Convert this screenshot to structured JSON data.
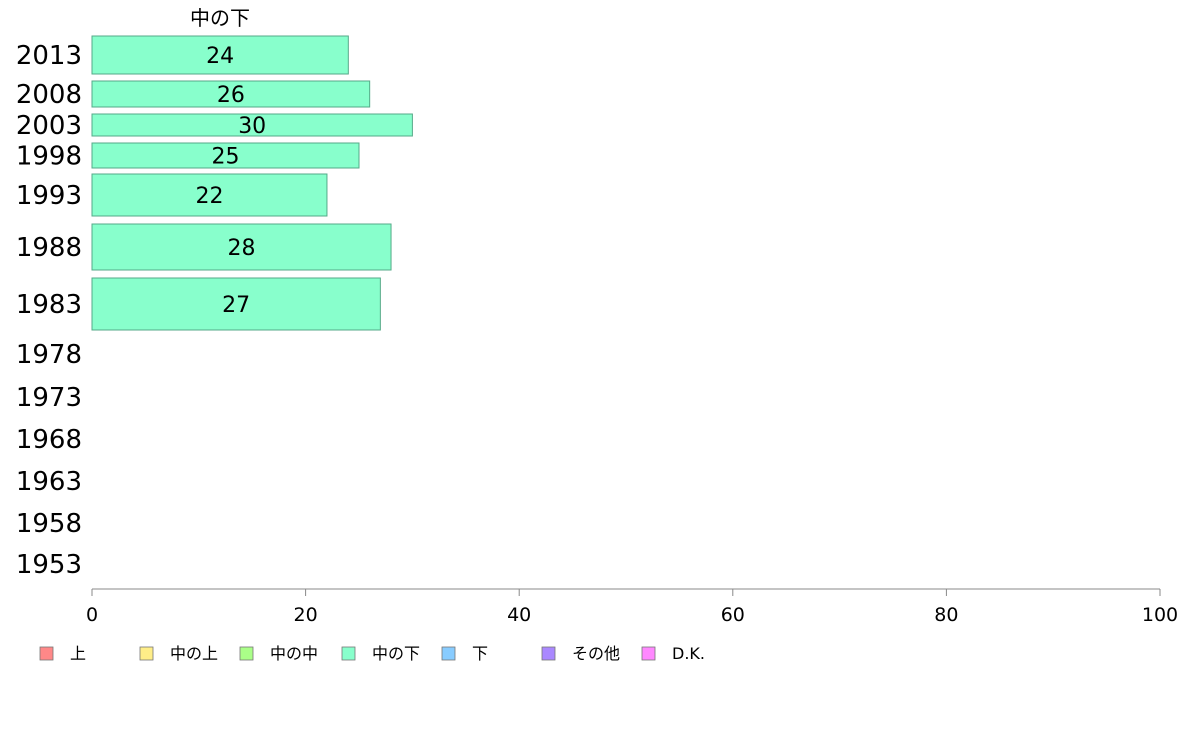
{
  "chart_data": {
    "type": "bar",
    "orientation": "horizontal",
    "series_label": "中の下",
    "categories": [
      "2013",
      "2008",
      "2003",
      "1998",
      "1993",
      "1988",
      "1983",
      "1978",
      "1973",
      "1968",
      "1963",
      "1958",
      "1953"
    ],
    "values": [
      24,
      26,
      30,
      25,
      22,
      28,
      27,
      null,
      null,
      null,
      null,
      null,
      null
    ],
    "xlim": [
      0,
      100
    ],
    "xticks": [
      0,
      20,
      40,
      60,
      80,
      100
    ],
    "bar_color": "#88ffcc",
    "bar_stroke": "#55aa88",
    "legend_position": "bottom-left",
    "legend": [
      {
        "label": "上",
        "color": "#ff8888"
      },
      {
        "label": "中の上",
        "color": "#ffee88"
      },
      {
        "label": "中の中",
        "color": "#aaff88"
      },
      {
        "label": "中の下",
        "color": "#88ffcc"
      },
      {
        "label": "下",
        "color": "#88ccff"
      },
      {
        "label": "その他",
        "color": "#aa88ff"
      },
      {
        "label": "D.K.",
        "color": "#ff88ff"
      }
    ]
  }
}
